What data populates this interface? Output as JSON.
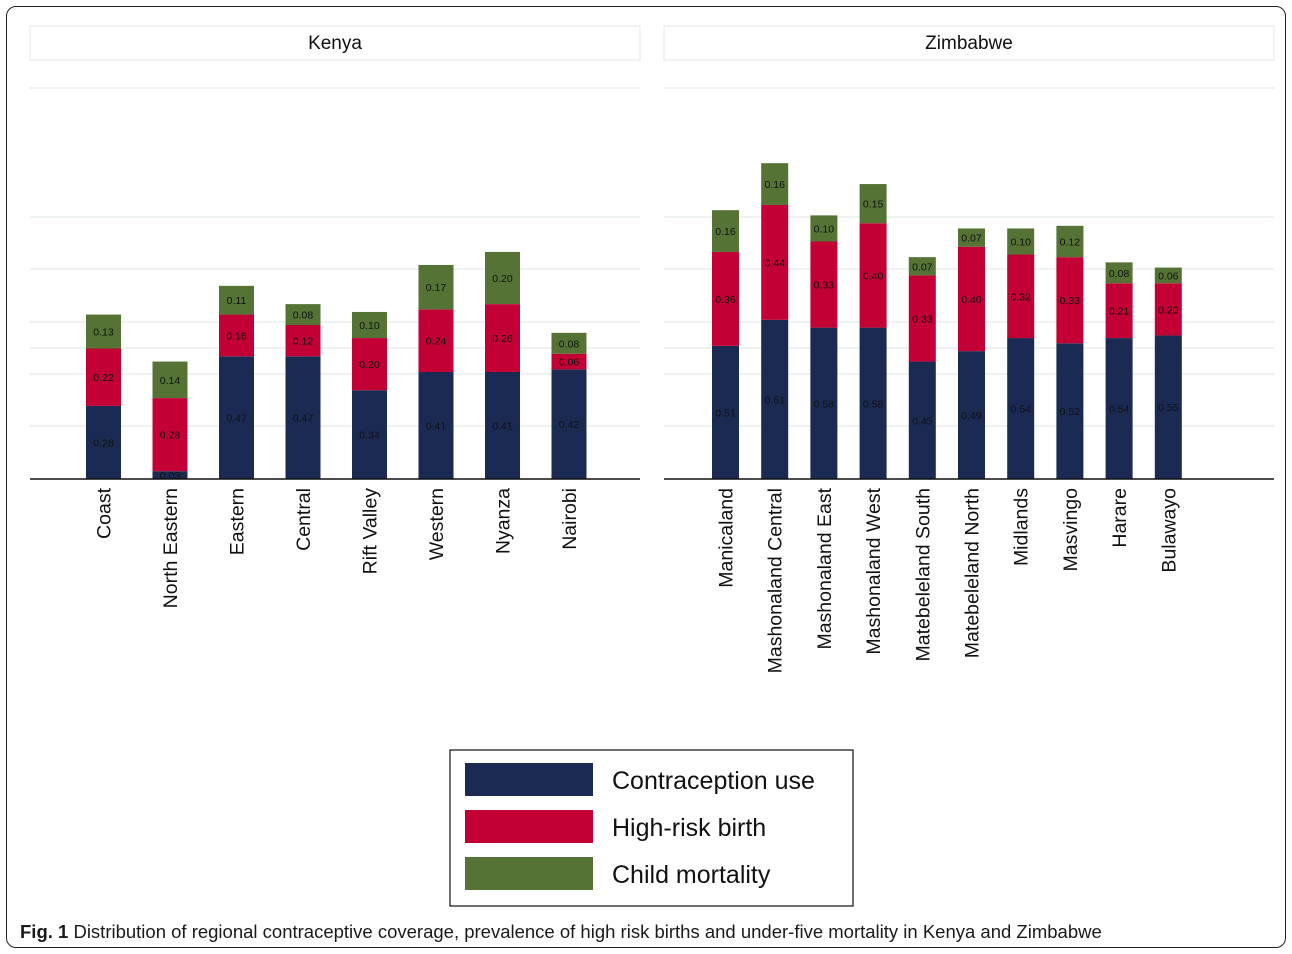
{
  "caption": {
    "label": "Fig. 1",
    "text": " Distribution of regional contraceptive coverage, prevalence of high risk births and under-five mortality in Kenya and Zimbabwe"
  },
  "colors": {
    "contraception": "#1b2a53",
    "high_risk": "#c20035",
    "mortality": "#547335"
  },
  "chart_data": [
    {
      "type": "bar",
      "stacked": true,
      "title": "Kenya",
      "categories": [
        "Coast",
        "North Eastern",
        "Eastern",
        "Central",
        "Rift Valley",
        "Western",
        "Nyanza",
        "Nairobi"
      ],
      "series": [
        {
          "name": "Contraception use",
          "values": [
            0.28,
            0.03,
            0.47,
            0.47,
            0.34,
            0.41,
            0.41,
            0.42
          ],
          "labels": [
            "0.28",
            "0.03",
            "0.47",
            "0.47",
            "0.34",
            "0.41",
            "0.41",
            "0.42"
          ]
        },
        {
          "name": "High-risk birth",
          "values": [
            0.22,
            0.28,
            0.16,
            0.12,
            0.2,
            0.24,
            0.26,
            0.06
          ],
          "labels": [
            "0.22",
            "0.28",
            "0.16",
            "0.12",
            "0.20",
            "0.24",
            "0.26",
            "0.06"
          ]
        },
        {
          "name": "Child mortality",
          "values": [
            0.13,
            0.14,
            0.11,
            0.08,
            0.1,
            0.17,
            0.2,
            0.08
          ],
          "labels": [
            "0.13",
            "0.14",
            "0.11",
            "0.08",
            "0.10",
            "0.17",
            "0.20",
            "0.08"
          ]
        }
      ],
      "ylim": [
        0,
        1.5
      ],
      "grid": true
    },
    {
      "type": "bar",
      "stacked": true,
      "title": "Zimbabwe",
      "categories": [
        "Manicaland",
        "Mashonaland Central",
        "Mashonaland East",
        "Mashonaland West",
        "Matebeleland South",
        "Matebeleland North",
        "Midlands",
        "Masvingo",
        "Harare",
        "Bulawayo"
      ],
      "series": [
        {
          "name": "Contraception use",
          "values": [
            0.51,
            0.61,
            0.58,
            0.58,
            0.45,
            0.49,
            0.54,
            0.52,
            0.54,
            0.55
          ],
          "labels": [
            "0.51",
            "0.61",
            "0.58",
            "0.58",
            "0.45",
            "0.49",
            "0.54",
            "0.52",
            "0.54",
            "0.55"
          ]
        },
        {
          "name": "High-risk birth",
          "values": [
            0.36,
            0.44,
            0.33,
            0.4,
            0.33,
            0.4,
            0.32,
            0.33,
            0.21,
            0.2
          ],
          "labels": [
            "0.36",
            "0.44",
            "0.33",
            "0.40",
            "0.33",
            "0.40",
            "0.32",
            "0.33",
            "0.21",
            "0.20"
          ]
        },
        {
          "name": "Child mortality",
          "values": [
            0.16,
            0.16,
            0.1,
            0.15,
            0.07,
            0.07,
            0.1,
            0.12,
            0.08,
            0.06
          ],
          "labels": [
            "0.16",
            "0.16",
            "0.10",
            "0.15",
            "0.07",
            "0.07",
            "0.10",
            "0.12",
            "0.08",
            "0.06"
          ]
        }
      ],
      "ylim": [
        0,
        1.5
      ],
      "grid": true
    }
  ],
  "legend": {
    "placement": "bottom-center",
    "items": [
      "Contraception use",
      "High-risk birth",
      "Child mortality"
    ]
  }
}
